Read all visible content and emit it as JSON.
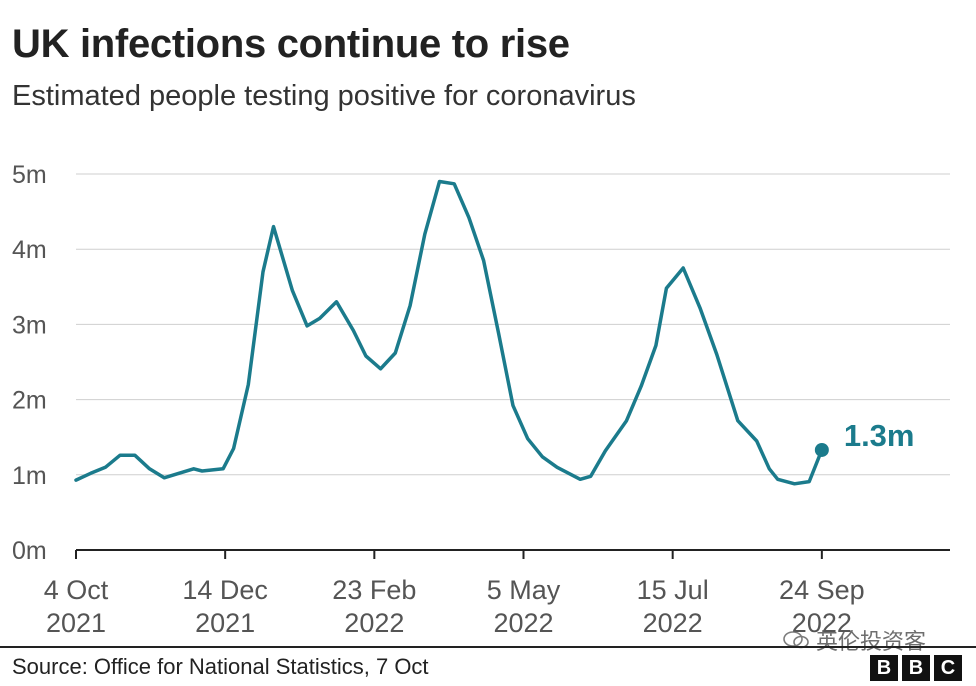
{
  "header": {
    "title": "UK infections continue to rise",
    "subtitle": "Estimated people testing positive for coronavirus"
  },
  "footer": {
    "source": "Source: Office for National Statistics, 7 Oct",
    "watermark": "英伦投资客",
    "logo_letters": [
      "B",
      "B",
      "C"
    ]
  },
  "colors": {
    "series": "#1b7b8c",
    "grid": "#cfcfcf",
    "axis": "#222222"
  },
  "chart_data": {
    "type": "line",
    "title": "UK infections continue to rise",
    "subtitle": "Estimated people testing positive for coronavirus",
    "xlabel": "",
    "ylabel": "",
    "ylim": [
      0,
      5
    ],
    "y_ticks": [
      0,
      1,
      2,
      3,
      4,
      5
    ],
    "y_tick_labels": [
      "0m",
      "1m",
      "2m",
      "3m",
      "4m",
      "5m"
    ],
    "x_ticks": [
      {
        "date": "2021-10-04",
        "line1": "4 Oct",
        "line2": "2021"
      },
      {
        "date": "2021-12-14",
        "line1": "14 Dec",
        "line2": "2021"
      },
      {
        "date": "2022-02-23",
        "line1": "23 Feb",
        "line2": "2022"
      },
      {
        "date": "2022-05-05",
        "line1": "5 May",
        "line2": "2022"
      },
      {
        "date": "2022-07-15",
        "line1": "15 Jul",
        "line2": "2022"
      },
      {
        "date": "2022-09-24",
        "line1": "24 Sep",
        "line2": "2022"
      }
    ],
    "xlim": [
      "2021-10-04",
      "2022-11-24"
    ],
    "grid": true,
    "unit": "millions",
    "series": [
      {
        "points": [
          [
            "2021-10-04",
            0.93
          ],
          [
            "2021-10-11",
            1.02
          ],
          [
            "2021-10-18",
            1.1
          ],
          [
            "2021-10-25",
            1.26
          ],
          [
            "2021-11-01",
            1.26
          ],
          [
            "2021-11-08",
            1.08
          ],
          [
            "2021-11-15",
            0.96
          ],
          [
            "2021-11-22",
            1.02
          ],
          [
            "2021-11-29",
            1.08
          ],
          [
            "2021-12-03",
            1.05
          ],
          [
            "2021-12-13",
            1.08
          ],
          [
            "2021-12-18",
            1.35
          ],
          [
            "2021-12-25",
            2.2
          ],
          [
            "2022-01-01",
            3.7
          ],
          [
            "2022-01-06",
            4.3
          ],
          [
            "2022-01-15",
            3.45
          ],
          [
            "2022-01-22",
            2.98
          ],
          [
            "2022-01-28",
            3.08
          ],
          [
            "2022-02-05",
            3.3
          ],
          [
            "2022-02-13",
            2.92
          ],
          [
            "2022-02-19",
            2.58
          ],
          [
            "2022-02-26",
            2.41
          ],
          [
            "2022-03-05",
            2.62
          ],
          [
            "2022-03-12",
            3.25
          ],
          [
            "2022-03-19",
            4.2
          ],
          [
            "2022-03-26",
            4.9
          ],
          [
            "2022-04-02",
            4.87
          ],
          [
            "2022-04-09",
            4.42
          ],
          [
            "2022-04-16",
            3.85
          ],
          [
            "2022-04-23",
            2.9
          ],
          [
            "2022-04-30",
            1.92
          ],
          [
            "2022-05-07",
            1.48
          ],
          [
            "2022-05-14",
            1.24
          ],
          [
            "2022-05-21",
            1.1
          ],
          [
            "2022-06-01",
            0.94
          ],
          [
            "2022-06-06",
            0.98
          ],
          [
            "2022-06-13",
            1.32
          ],
          [
            "2022-06-23",
            1.72
          ],
          [
            "2022-06-30",
            2.18
          ],
          [
            "2022-07-07",
            2.72
          ],
          [
            "2022-07-12",
            3.48
          ],
          [
            "2022-07-20",
            3.75
          ],
          [
            "2022-07-28",
            3.22
          ],
          [
            "2022-08-05",
            2.6
          ],
          [
            "2022-08-15",
            1.72
          ],
          [
            "2022-08-24",
            1.45
          ],
          [
            "2022-08-30",
            1.08
          ],
          [
            "2022-09-03",
            0.94
          ],
          [
            "2022-09-11",
            0.88
          ],
          [
            "2022-09-18",
            0.91
          ],
          [
            "2022-09-24",
            1.33
          ]
        ]
      }
    ],
    "annotations": [
      {
        "date": "2022-09-24",
        "value": 1.33,
        "text": "1.3m"
      }
    ]
  }
}
